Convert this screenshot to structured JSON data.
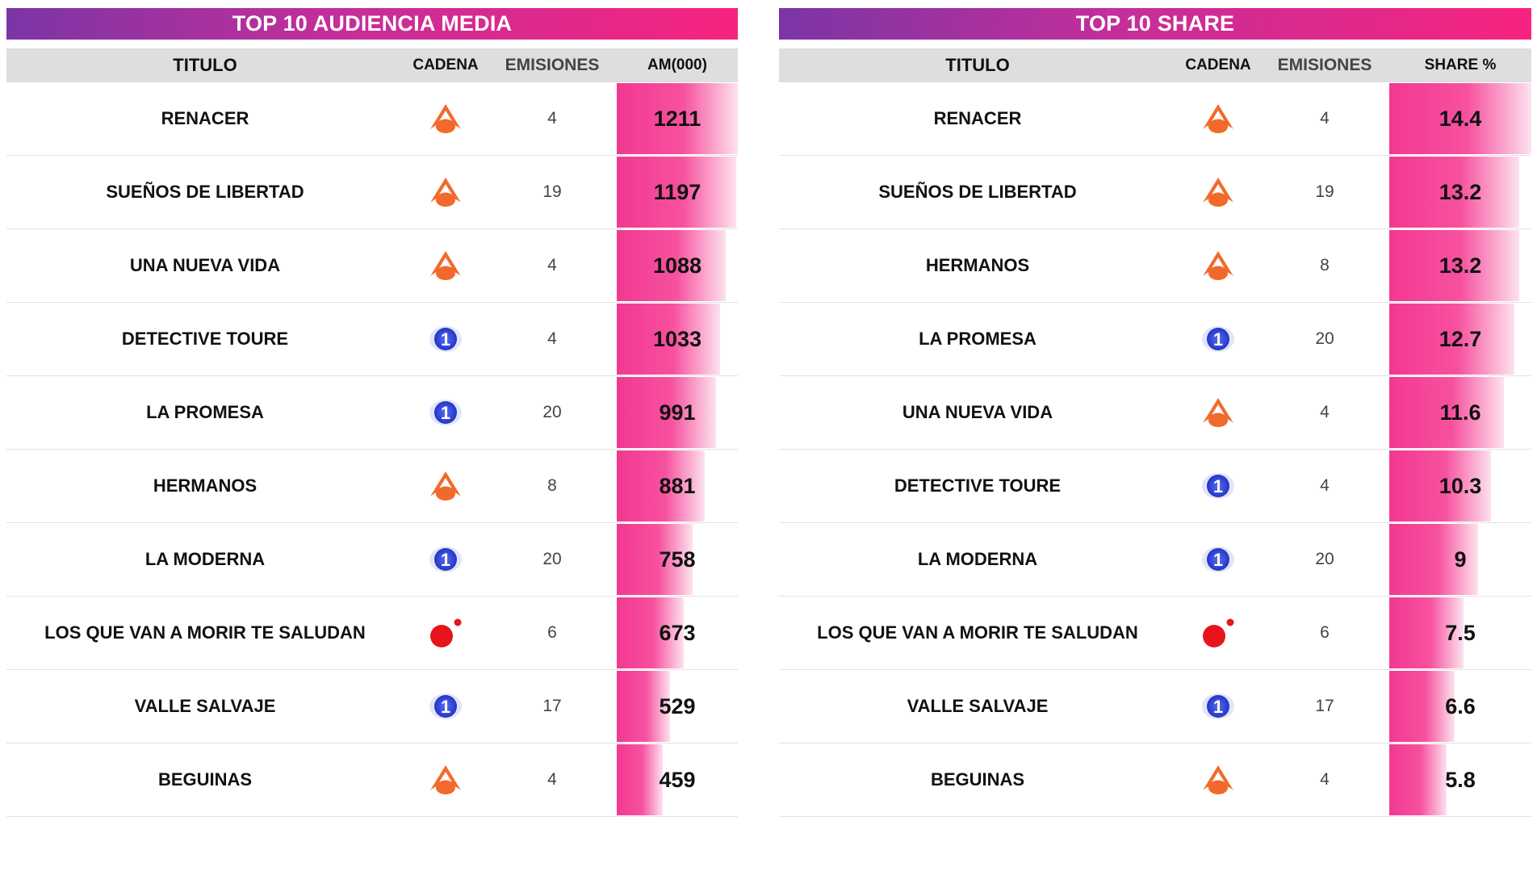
{
  "chart_data": [
    {
      "type": "table",
      "title": "TOP 10 AUDIENCIA MEDIA",
      "columns": [
        "TITULO",
        "CADENA",
        "EMISIONES",
        "AM(000)"
      ],
      "max_value": 1211,
      "rows": [
        {
          "title": "RENACER",
          "channel": "antena3-icon",
          "emisiones": "4",
          "value": 1211,
          "label": "1211"
        },
        {
          "title": "SUEÑOS DE LIBERTAD",
          "channel": "antena3-icon",
          "emisiones": "19",
          "value": 1197,
          "label": "1197"
        },
        {
          "title": "UNA NUEVA VIDA",
          "channel": "antena3-icon",
          "emisiones": "4",
          "value": 1088,
          "label": "1088"
        },
        {
          "title": "DETECTIVE TOURE",
          "channel": "la1-icon",
          "emisiones": "4",
          "value": 1033,
          "label": "1033"
        },
        {
          "title": "LA PROMESA",
          "channel": "la1-icon",
          "emisiones": "20",
          "value": 991,
          "label": "991"
        },
        {
          "title": "HERMANOS",
          "channel": "antena3-icon",
          "emisiones": "8",
          "value": 881,
          "label": "881"
        },
        {
          "title": "LA MODERNA",
          "channel": "la1-icon",
          "emisiones": "20",
          "value": 758,
          "label": "758"
        },
        {
          "title": "LOS QUE VAN A MORIR TE SALUDAN",
          "channel": "cuatro-icon",
          "emisiones": "6",
          "value": 673,
          "label": "673"
        },
        {
          "title": "VALLE SALVAJE",
          "channel": "la1-icon",
          "emisiones": "17",
          "value": 529,
          "label": "529"
        },
        {
          "title": "BEGUINAS",
          "channel": "antena3-icon",
          "emisiones": "4",
          "value": 459,
          "label": "459"
        }
      ]
    },
    {
      "type": "table",
      "title": "TOP 10 SHARE",
      "columns": [
        "TITULO",
        "CADENA",
        "EMISIONES",
        "SHARE %"
      ],
      "max_value": 14.4,
      "rows": [
        {
          "title": "RENACER",
          "channel": "antena3-icon",
          "emisiones": "4",
          "value": 14.4,
          "label": "14.4"
        },
        {
          "title": "SUEÑOS DE LIBERTAD",
          "channel": "antena3-icon",
          "emisiones": "19",
          "value": 13.2,
          "label": "13.2"
        },
        {
          "title": "HERMANOS",
          "channel": "antena3-icon",
          "emisiones": "8",
          "value": 13.2,
          "label": "13.2"
        },
        {
          "title": "LA PROMESA",
          "channel": "la1-icon",
          "emisiones": "20",
          "value": 12.7,
          "label": "12.7"
        },
        {
          "title": "UNA NUEVA VIDA",
          "channel": "antena3-icon",
          "emisiones": "4",
          "value": 11.6,
          "label": "11.6"
        },
        {
          "title": "DETECTIVE TOURE",
          "channel": "la1-icon",
          "emisiones": "4",
          "value": 10.3,
          "label": "10.3"
        },
        {
          "title": "LA MODERNA",
          "channel": "la1-icon",
          "emisiones": "20",
          "value": 9,
          "label": "9"
        },
        {
          "title": "LOS QUE VAN A MORIR TE SALUDAN",
          "channel": "cuatro-icon",
          "emisiones": "6",
          "value": 7.5,
          "label": "7.5"
        },
        {
          "title": "VALLE SALVAJE",
          "channel": "la1-icon",
          "emisiones": "17",
          "value": 6.6,
          "label": "6.6"
        },
        {
          "title": "BEGUINAS",
          "channel": "antena3-icon",
          "emisiones": "4",
          "value": 5.8,
          "label": "5.8"
        }
      ]
    }
  ],
  "colors": {
    "banner_start": "#7b35a6",
    "banner_end": "#f7247f",
    "bar": "#f23891",
    "antena3": "#f26a2b",
    "la1": "#2a3fd0",
    "cuatro": "#e8141c"
  }
}
